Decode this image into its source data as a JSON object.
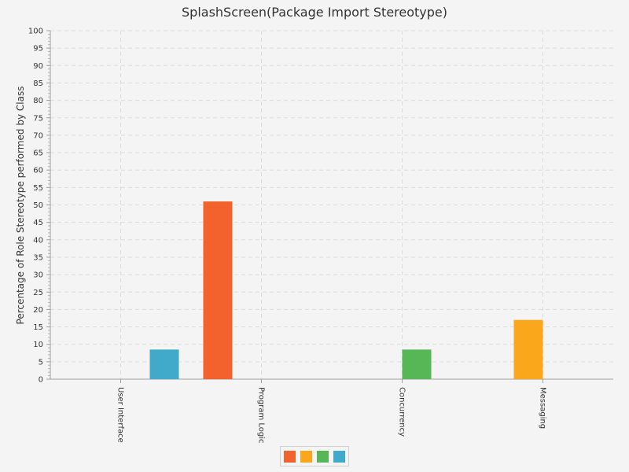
{
  "chart_data": {
    "type": "bar",
    "title": "SplashScreen(Package Import Stereotype)",
    "xlabel": "",
    "ylabel": "Percentage of Role Stereotype performed by Class",
    "ylim": [
      0,
      100
    ],
    "y_ticks": [
      0,
      5,
      10,
      15,
      20,
      25,
      30,
      35,
      40,
      45,
      50,
      55,
      60,
      65,
      70,
      75,
      80,
      85,
      90,
      95,
      100
    ],
    "grid": true,
    "legend_position": "bottom",
    "categories": [
      "User Interface",
      "Program Logic",
      "Concurrency",
      "Messaging"
    ],
    "series": [
      {
        "color": "#f3622d",
        "values": [
          0,
          51,
          0,
          0
        ]
      },
      {
        "color": "#fba71b",
        "values": [
          0,
          0,
          0,
          17
        ]
      },
      {
        "color": "#57b757",
        "values": [
          0,
          0,
          8.5,
          0
        ]
      },
      {
        "color": "#41a9c9",
        "values": [
          8.5,
          0,
          0,
          0
        ]
      }
    ]
  }
}
